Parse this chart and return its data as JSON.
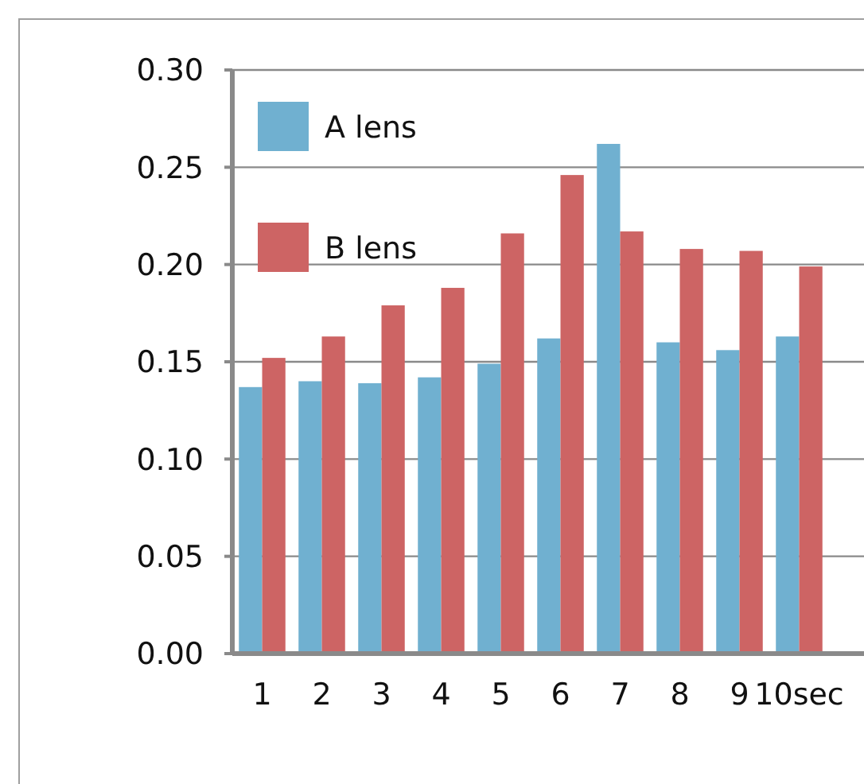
{
  "chart_data": {
    "type": "bar",
    "categories": [
      "1",
      "2",
      "3",
      "4",
      "5",
      "6",
      "7",
      "8",
      "9",
      "10sec"
    ],
    "series": [
      {
        "name": "A lens",
        "color": "#70b0d0",
        "values": [
          0.137,
          0.14,
          0.139,
          0.142,
          0.149,
          0.162,
          0.262,
          0.16,
          0.156,
          0.163
        ]
      },
      {
        "name": "B lens",
        "color": "#cd6464",
        "values": [
          0.152,
          0.163,
          0.179,
          0.188,
          0.216,
          0.246,
          0.217,
          0.208,
          0.207,
          0.199
        ]
      }
    ],
    "ylim": [
      0,
      0.3
    ],
    "yticks": [
      {
        "value": 0,
        "label": "0.00"
      },
      {
        "value": 0.05,
        "label": "0.05"
      },
      {
        "value": 0.1,
        "label": "0.10"
      },
      {
        "value": 0.15,
        "label": "0.15"
      },
      {
        "value": 0.2,
        "label": "0.20"
      },
      {
        "value": 0.25,
        "label": "0.25"
      },
      {
        "value": 0.3,
        "label": "0.30"
      }
    ],
    "grid": "y",
    "legend": "top left"
  }
}
